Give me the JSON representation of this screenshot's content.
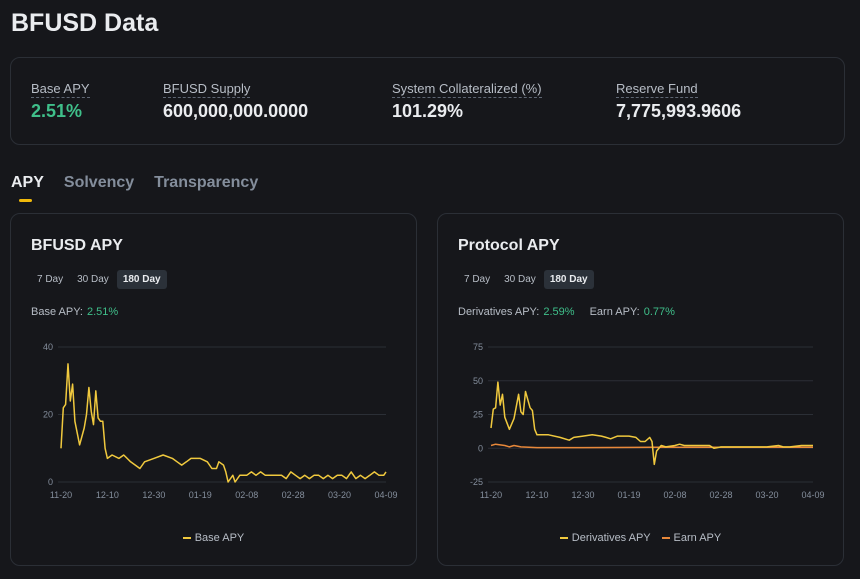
{
  "title": "BFUSD Data",
  "stats": [
    {
      "label": "Base APY",
      "value": "2.51%",
      "color": "#3fbf8a"
    },
    {
      "label": "BFUSD Supply",
      "value": "600,000,000.0000"
    },
    {
      "label": "System Collateralized (%)",
      "value": "101.29%"
    },
    {
      "label": "Reserve Fund",
      "value": "7,775,993.9606"
    }
  ],
  "tabs": [
    {
      "label": "APY",
      "active": true
    },
    {
      "label": "Solvency"
    },
    {
      "label": "Transparency"
    }
  ],
  "colors": {
    "yellow": "#f0c93e",
    "orange": "#e8883a",
    "green": "#3fbf8a"
  },
  "cards": [
    {
      "title": "BFUSD APY",
      "ranges": [
        "7 Day",
        "30 Day",
        "180 Day"
      ],
      "selected_range": "180 Day",
      "summary": [
        {
          "label": "Base APY:",
          "value": "2.51%"
        }
      ],
      "legend": [
        "Base APY"
      ]
    },
    {
      "title": "Protocol APY",
      "ranges": [
        "7 Day",
        "30 Day",
        "180 Day"
      ],
      "selected_range": "180 Day",
      "summary": [
        {
          "label": "Derivatives APY:",
          "value": "2.59%"
        },
        {
          "label": "Earn APY:",
          "value": "0.77%"
        }
      ],
      "legend": [
        "Derivatives APY",
        "Earn APY"
      ]
    }
  ],
  "chart_data": [
    {
      "type": "line",
      "x_ticks": [
        "11-20",
        "12-10",
        "12-30",
        "01-19",
        "02-08",
        "02-28",
        "03-20",
        "04-09"
      ],
      "y_ticks": [
        0,
        20,
        40
      ],
      "ylim": [
        0,
        40
      ],
      "grid": true,
      "legend_placement": "bottom",
      "series": [
        {
          "name": "Base APY",
          "color": "#f0c93e",
          "points": [
            [
              0,
              10
            ],
            [
              1,
              22
            ],
            [
              2,
              23
            ],
            [
              3,
              35
            ],
            [
              4,
              24
            ],
            [
              5,
              29
            ],
            [
              6,
              18
            ],
            [
              8,
              11
            ],
            [
              10,
              16
            ],
            [
              11,
              20
            ],
            [
              12,
              28
            ],
            [
              13,
              21
            ],
            [
              14,
              17
            ],
            [
              15,
              27
            ],
            [
              16,
              19
            ],
            [
              17,
              18
            ],
            [
              18,
              18
            ],
            [
              19,
              10
            ],
            [
              20,
              7
            ],
            [
              22,
              8
            ],
            [
              25,
              7
            ],
            [
              27,
              8
            ],
            [
              30,
              6
            ],
            [
              32,
              5
            ],
            [
              34,
              4
            ],
            [
              36,
              6
            ],
            [
              40,
              7
            ],
            [
              44,
              8
            ],
            [
              48,
              7
            ],
            [
              50,
              6
            ],
            [
              52,
              5
            ],
            [
              54,
              6
            ],
            [
              56,
              7
            ],
            [
              60,
              7
            ],
            [
              63,
              6
            ],
            [
              65,
              4
            ],
            [
              67,
              4
            ],
            [
              68,
              6
            ],
            [
              70,
              5
            ],
            [
              71,
              3
            ],
            [
              72,
              0
            ],
            [
              74,
              2
            ],
            [
              75,
              0
            ],
            [
              77,
              2
            ],
            [
              80,
              2
            ],
            [
              82,
              3
            ],
            [
              84,
              2
            ],
            [
              86,
              3
            ],
            [
              88,
              2
            ],
            [
              90,
              2
            ],
            [
              95,
              2
            ],
            [
              97,
              1
            ],
            [
              99,
              3
            ],
            [
              101,
              2
            ],
            [
              103,
              1
            ],
            [
              105,
              2
            ],
            [
              107,
              1
            ],
            [
              109,
              2
            ],
            [
              111,
              2
            ],
            [
              113,
              1
            ],
            [
              115,
              2
            ],
            [
              117,
              1
            ],
            [
              119,
              2
            ],
            [
              121,
              2
            ],
            [
              123,
              1
            ],
            [
              125,
              3
            ],
            [
              127,
              1
            ],
            [
              129,
              2
            ],
            [
              131,
              1
            ],
            [
              133,
              2
            ],
            [
              135,
              3
            ],
            [
              137,
              2
            ],
            [
              139,
              2
            ],
            [
              140,
              3
            ]
          ]
        }
      ]
    },
    {
      "type": "line",
      "x_ticks": [
        "11-20",
        "12-10",
        "12-30",
        "01-19",
        "02-08",
        "02-28",
        "03-20",
        "04-09"
      ],
      "y_ticks": [
        -25,
        0,
        25,
        50,
        75
      ],
      "ylim": [
        -25,
        75
      ],
      "grid": true,
      "legend_placement": "bottom",
      "series": [
        {
          "name": "Derivatives APY",
          "color": "#f0c93e",
          "points": [
            [
              0,
              15
            ],
            [
              1,
              29
            ],
            [
              2,
              30
            ],
            [
              3,
              49
            ],
            [
              4,
              32
            ],
            [
              5,
              40
            ],
            [
              6,
              23
            ],
            [
              8,
              14
            ],
            [
              10,
              22
            ],
            [
              12,
              40
            ],
            [
              13,
              27
            ],
            [
              14,
              25
            ],
            [
              15,
              42
            ],
            [
              17,
              30
            ],
            [
              18,
              28
            ],
            [
              19,
              14
            ],
            [
              20,
              10
            ],
            [
              25,
              10
            ],
            [
              30,
              8
            ],
            [
              34,
              6
            ],
            [
              36,
              8
            ],
            [
              40,
              9
            ],
            [
              44,
              10
            ],
            [
              48,
              9
            ],
            [
              50,
              8
            ],
            [
              52,
              7
            ],
            [
              55,
              9
            ],
            [
              60,
              9
            ],
            [
              63,
              8
            ],
            [
              65,
              5
            ],
            [
              67,
              5
            ],
            [
              69,
              8
            ],
            [
              70,
              5
            ],
            [
              71,
              -12
            ],
            [
              72,
              -2
            ],
            [
              74,
              2
            ],
            [
              76,
              1
            ],
            [
              80,
              2
            ],
            [
              82,
              3
            ],
            [
              84,
              2
            ],
            [
              90,
              2
            ],
            [
              95,
              2
            ],
            [
              97,
              0
            ],
            [
              100,
              1
            ],
            [
              105,
              1
            ],
            [
              110,
              1
            ],
            [
              115,
              1
            ],
            [
              120,
              1
            ],
            [
              125,
              2
            ],
            [
              127,
              1
            ],
            [
              130,
              1
            ],
            [
              135,
              2
            ],
            [
              140,
              2
            ]
          ]
        },
        {
          "name": "Earn APY",
          "color": "#e8883a",
          "points": [
            [
              0,
              2
            ],
            [
              2,
              3
            ],
            [
              6,
              2
            ],
            [
              8,
              1
            ],
            [
              10,
              2
            ],
            [
              13,
              1
            ],
            [
              20,
              0.5
            ],
            [
              40,
              0.5
            ],
            [
              70,
              0.7
            ],
            [
              100,
              0.8
            ],
            [
              140,
              0.8
            ]
          ]
        }
      ]
    }
  ]
}
